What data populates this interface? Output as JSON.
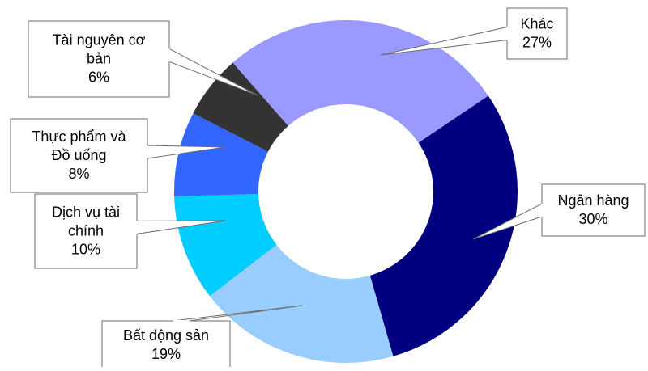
{
  "chart_data": {
    "type": "pie",
    "subtype": "donut",
    "title": "",
    "legend": "none",
    "slices": [
      {
        "label_lines": [
          "Ngân hàng"
        ],
        "value": 30,
        "value_label": "30%",
        "color": "#000080"
      },
      {
        "label_lines": [
          "Bất động sản"
        ],
        "value": 19,
        "value_label": "19%",
        "color": "#99CCFF"
      },
      {
        "label_lines": [
          "Dịch vụ tài",
          "chính"
        ],
        "value": 10,
        "value_label": "10%",
        "color": "#00CCFF"
      },
      {
        "label_lines": [
          "Thực phẩm và",
          "Đồ uống"
        ],
        "value": 8,
        "value_label": "8%",
        "color": "#3366FF"
      },
      {
        "label_lines": [
          "Tài nguyên cơ",
          "bản"
        ],
        "value": 6,
        "value_label": "6%",
        "color": "#333333"
      },
      {
        "label_lines": [
          "Khác"
        ],
        "value": 27,
        "value_label": "27%",
        "color": "#9999FF"
      }
    ]
  }
}
